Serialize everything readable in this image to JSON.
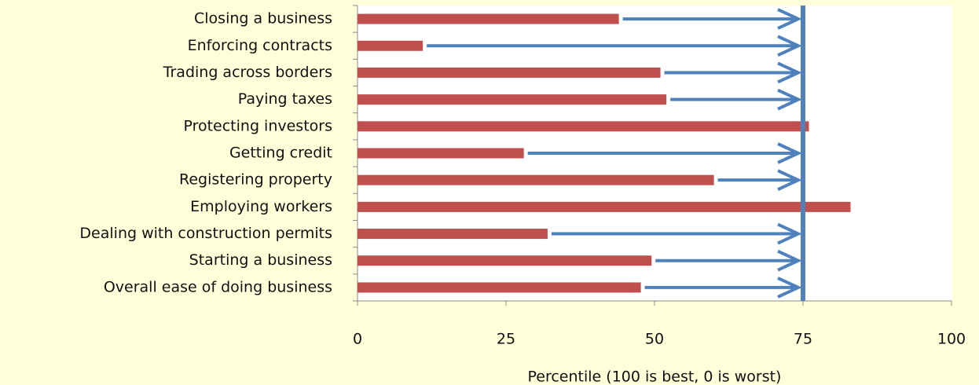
{
  "chart_data": {
    "type": "bar",
    "orientation": "horizontal",
    "categories": [
      "Closing a business",
      "Enforcing contracts",
      "Trading across borders",
      "Paying taxes",
      "Protecting investors",
      "Getting credit",
      "Registering property",
      "Employing workers",
      "Dealing with construction permits",
      "Starting a business",
      "Overall ease of doing business"
    ],
    "values": [
      44,
      11,
      51,
      52,
      76,
      28,
      60,
      83,
      32,
      49.5,
      47.7
    ],
    "color": "#c0504d",
    "target": 75,
    "target_color": "#4f81bd",
    "xlim": [
      0,
      100
    ],
    "xticks": [
      0,
      25,
      50,
      75,
      100
    ],
    "xlabel": "Percentile (100 is best, 0 is worst)"
  }
}
